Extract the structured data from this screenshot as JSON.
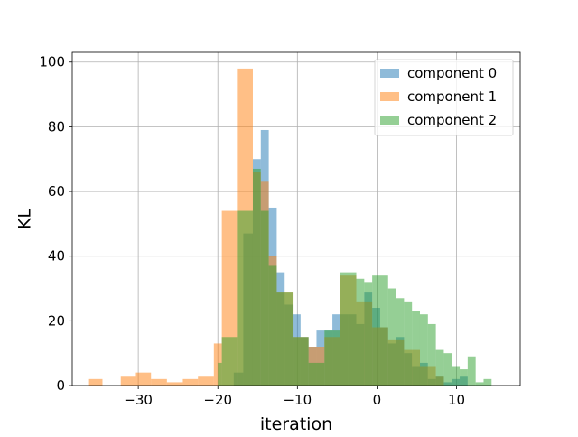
{
  "chart_data": {
    "type": "bar",
    "title": "",
    "xlabel": "iteration",
    "ylabel": "KL",
    "xlim": [
      -38.3,
      18.0
    ],
    "ylim": [
      0,
      103
    ],
    "xticks": [
      -30,
      -20,
      -10,
      0,
      10
    ],
    "xtick_labels": [
      "−30",
      "−20",
      "−10",
      "0",
      "10"
    ],
    "yticks": [
      0,
      20,
      40,
      60,
      80,
      100
    ],
    "ytick_labels": [
      "0",
      "20",
      "40",
      "60",
      "80",
      "100"
    ],
    "grid": true,
    "legend_position": "top-right",
    "series": [
      {
        "name": "component 0",
        "color": "#1f77b4",
        "alpha": 0.5,
        "bins": [
          [
            -18.0,
            -16.8,
            4
          ],
          [
            -16.8,
            -15.6,
            47
          ],
          [
            -15.6,
            -14.6,
            70
          ],
          [
            -14.6,
            -13.6,
            79
          ],
          [
            -13.6,
            -12.6,
            55
          ],
          [
            -12.6,
            -11.6,
            35
          ],
          [
            -11.6,
            -10.6,
            25
          ],
          [
            -10.6,
            -9.6,
            22
          ],
          [
            -9.6,
            -8.6,
            15
          ],
          [
            -8.6,
            -7.6,
            12
          ],
          [
            -7.6,
            -6.6,
            17
          ],
          [
            -6.6,
            -5.6,
            17
          ],
          [
            -5.6,
            -4.6,
            22
          ],
          [
            -4.6,
            -3.6,
            22
          ],
          [
            -3.6,
            -2.6,
            22
          ],
          [
            -2.6,
            -1.6,
            19
          ],
          [
            -1.6,
            -0.6,
            29
          ],
          [
            -0.6,
            0.4,
            24
          ],
          [
            0.4,
            1.4,
            18
          ],
          [
            1.4,
            2.4,
            13
          ],
          [
            2.4,
            3.4,
            15
          ],
          [
            3.4,
            4.4,
            10
          ],
          [
            4.4,
            5.4,
            6
          ],
          [
            5.4,
            6.4,
            7
          ],
          [
            6.4,
            7.4,
            2
          ],
          [
            7.4,
            8.4,
            3
          ],
          [
            8.4,
            9.4,
            1
          ],
          [
            9.4,
            10.4,
            2
          ],
          [
            10.4,
            11.4,
            3
          ]
        ]
      },
      {
        "name": "component 1",
        "color": "#ff7f0e",
        "alpha": 0.5,
        "bins": [
          [
            -36.3,
            -34.5,
            2
          ],
          [
            -32.2,
            -30.3,
            3
          ],
          [
            -30.3,
            -28.4,
            4
          ],
          [
            -28.4,
            -26.4,
            2
          ],
          [
            -26.4,
            -24.4,
            1
          ],
          [
            -24.4,
            -22.5,
            2
          ],
          [
            -22.5,
            -20.5,
            3
          ],
          [
            -20.5,
            -19.5,
            13
          ],
          [
            -19.5,
            -17.6,
            54
          ],
          [
            -17.6,
            -15.6,
            98
          ],
          [
            -15.6,
            -14.6,
            66
          ],
          [
            -14.6,
            -13.6,
            63
          ],
          [
            -13.6,
            -12.6,
            40
          ],
          [
            -12.6,
            -10.6,
            29
          ],
          [
            -10.6,
            -8.6,
            15
          ],
          [
            -8.6,
            -6.6,
            12
          ],
          [
            -6.6,
            -4.6,
            15
          ],
          [
            -4.6,
            -2.6,
            34
          ],
          [
            -2.6,
            -0.6,
            26
          ],
          [
            -0.6,
            1.4,
            18
          ],
          [
            1.4,
            3.4,
            14
          ],
          [
            3.4,
            5.4,
            11
          ],
          [
            5.4,
            7.4,
            6
          ],
          [
            7.4,
            8.4,
            3
          ]
        ]
      },
      {
        "name": "component 2",
        "color": "#2ca02c",
        "alpha": 0.5,
        "bins": [
          [
            -20.0,
            -19.5,
            7
          ],
          [
            -19.5,
            -17.6,
            15
          ],
          [
            -17.6,
            -15.6,
            54
          ],
          [
            -15.6,
            -14.6,
            67
          ],
          [
            -14.6,
            -13.6,
            54
          ],
          [
            -13.6,
            -12.6,
            37
          ],
          [
            -12.6,
            -10.6,
            29
          ],
          [
            -10.6,
            -8.6,
            15
          ],
          [
            -8.6,
            -6.6,
            7
          ],
          [
            -6.6,
            -4.6,
            17
          ],
          [
            -4.6,
            -2.6,
            35
          ],
          [
            -2.6,
            -1.6,
            33
          ],
          [
            -1.6,
            -0.6,
            32
          ],
          [
            -0.6,
            1.4,
            34
          ],
          [
            1.4,
            2.4,
            30
          ],
          [
            2.4,
            3.4,
            27
          ],
          [
            3.4,
            4.4,
            26
          ],
          [
            4.4,
            5.4,
            23
          ],
          [
            5.4,
            6.4,
            22
          ],
          [
            6.4,
            7.4,
            19
          ],
          [
            7.4,
            8.4,
            11
          ],
          [
            8.4,
            9.4,
            10
          ],
          [
            9.4,
            10.4,
            6
          ],
          [
            10.4,
            11.4,
            5
          ],
          [
            11.4,
            12.4,
            9
          ],
          [
            12.4,
            13.4,
            1
          ],
          [
            13.4,
            14.4,
            2
          ]
        ]
      }
    ]
  }
}
